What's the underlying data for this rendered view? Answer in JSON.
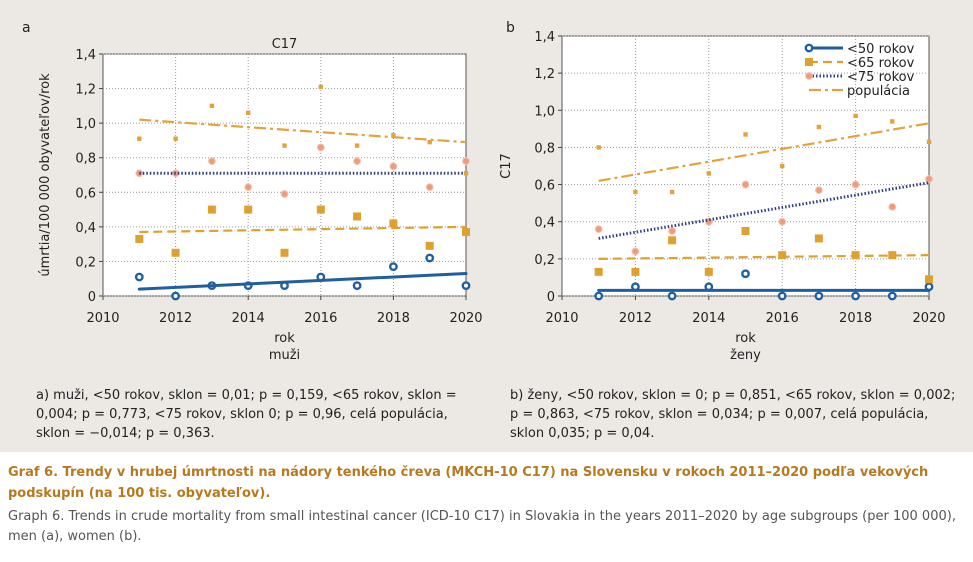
{
  "panels": {
    "a": {
      "letter": "a",
      "description": "a) muži, <50 rokov, sklon = 0,01; p = 0,159, <65 rokov, sklon = 0,004; p = 0,773, <75 rokov, sklon 0; p = 0,96, celá populácia, sklon = −0,014; p = 0,363."
    },
    "b": {
      "letter": "b",
      "description": "b) ženy, <50 rokov, sklon = 0; p = 0,851, <65 rokov, sklon = 0,002; p = 0,863, <75 rokov, sklon = 0,034; p = 0,007, celá populácia, sklon 0,035; p = 0,04."
    }
  },
  "caption": {
    "title": "Graf 6. Trendy v hrubej úmrtnosti na nádory tenkého čreva (MKCH-10 C17) na Slovensku v rokoch 2011–2020 podľa vekových podsku­pín (na 100 tis. obyvateľov).",
    "english": "Graph 6. Trends in crude mortality from small intestinal cancer (ICD-10 C17) in Slovakia in the years 2011–2020 by age subgroups (per 100 000), men (a), women (b)."
  },
  "colors": {
    "lt50": "#1f5fa0",
    "lt65": "#e0a030",
    "lt75": "#ef9c7e",
    "lt75_line": "#2f3d8a",
    "pop": "#e3a23b"
  },
  "chart_data": [
    {
      "type": "scatter",
      "title": "C17",
      "xlabel": "rok",
      "xsublabel": "muži",
      "ylabel": "úmrtia/100 000 obyvateľov/rok",
      "xlim": [
        2010,
        2020
      ],
      "ylim": [
        0,
        1.4
      ],
      "xticks": [
        2010,
        2012,
        2014,
        2016,
        2018,
        2020
      ],
      "yticks": [
        0,
        0.2,
        0.4,
        0.6,
        0.8,
        1.0,
        1.2,
        1.4
      ],
      "ytick_labels": [
        "0",
        "0,2",
        "0,4",
        "0,6",
        "0,8",
        "1,0",
        "1,2",
        "1,4"
      ],
      "grid": true,
      "legend": "none",
      "series": [
        {
          "key": "lt50",
          "name": "<50 rokov",
          "x": [
            2011,
            2012,
            2013,
            2014,
            2015,
            2016,
            2017,
            2018,
            2019,
            2020
          ],
          "values": [
            0.11,
            0.0,
            0.06,
            0.06,
            0.06,
            0.11,
            0.06,
            0.17,
            0.22,
            0.06
          ],
          "trend": [
            0.04,
            0.13
          ]
        },
        {
          "key": "lt65",
          "name": "<65 rokov",
          "x": [
            2011,
            2012,
            2013,
            2014,
            2015,
            2016,
            2017,
            2018,
            2019,
            2020
          ],
          "values": [
            0.33,
            0.25,
            0.5,
            0.5,
            0.25,
            0.5,
            0.46,
            0.42,
            0.29,
            0.37
          ],
          "trend": [
            0.37,
            0.4
          ]
        },
        {
          "key": "lt75",
          "name": "<75 rokov",
          "x": [
            2011,
            2012,
            2013,
            2014,
            2015,
            2016,
            2017,
            2018,
            2019,
            2020
          ],
          "values": [
            0.71,
            0.71,
            0.78,
            0.63,
            0.59,
            0.86,
            0.78,
            0.75,
            0.63,
            0.78
          ],
          "trend": [
            0.71,
            0.71
          ]
        },
        {
          "key": "pop",
          "name": "populácia",
          "x": [
            2011,
            2012,
            2013,
            2014,
            2015,
            2016,
            2017,
            2018,
            2019,
            2020
          ],
          "values": [
            0.91,
            0.91,
            1.1,
            1.06,
            0.87,
            1.21,
            0.87,
            0.93,
            0.89,
            0.71
          ],
          "trend": [
            1.02,
            0.89
          ]
        }
      ]
    },
    {
      "type": "scatter",
      "title": "",
      "xlabel": "rok",
      "xsublabel": "ženy",
      "ylabel": "C17",
      "xlim": [
        2010,
        2020
      ],
      "ylim": [
        0,
        1.4
      ],
      "xticks": [
        2010,
        2012,
        2014,
        2016,
        2018,
        2020
      ],
      "yticks": [
        0,
        0.2,
        0.4,
        0.6,
        0.8,
        1.0,
        1.2,
        1.4
      ],
      "ytick_labels": [
        "0",
        "0,2",
        "0,4",
        "0,6",
        "0,8",
        "1,0",
        "1,2",
        "1,4"
      ],
      "grid": true,
      "legend": "top-right",
      "series": [
        {
          "key": "lt50",
          "name": "<50 rokov",
          "x": [
            2011,
            2012,
            2013,
            2014,
            2015,
            2016,
            2017,
            2018,
            2019,
            2020
          ],
          "values": [
            0.0,
            0.05,
            0.0,
            0.05,
            0.12,
            0.0,
            0.0,
            0.0,
            0.0,
            0.05
          ],
          "trend": [
            0.03,
            0.03
          ]
        },
        {
          "key": "lt65",
          "name": "<65 rokov",
          "x": [
            2011,
            2012,
            2013,
            2014,
            2015,
            2016,
            2017,
            2018,
            2019,
            2020
          ],
          "values": [
            0.13,
            0.13,
            0.3,
            0.13,
            0.35,
            0.22,
            0.31,
            0.22,
            0.22,
            0.09
          ],
          "trend": [
            0.2,
            0.22
          ]
        },
        {
          "key": "lt75",
          "name": "<75 rokov",
          "x": [
            2011,
            2012,
            2013,
            2014,
            2015,
            2016,
            2017,
            2018,
            2019,
            2020
          ],
          "values": [
            0.36,
            0.24,
            0.35,
            0.4,
            0.6,
            0.4,
            0.57,
            0.6,
            0.48,
            0.63
          ],
          "trend": [
            0.31,
            0.61
          ]
        },
        {
          "key": "pop",
          "name": "populácia",
          "x": [
            2011,
            2012,
            2013,
            2014,
            2015,
            2016,
            2017,
            2018,
            2019,
            2020
          ],
          "values": [
            0.8,
            0.56,
            0.56,
            0.66,
            0.87,
            0.7,
            0.91,
            0.97,
            0.94,
            0.83
          ],
          "trend": [
            0.62,
            0.93
          ]
        }
      ]
    }
  ]
}
